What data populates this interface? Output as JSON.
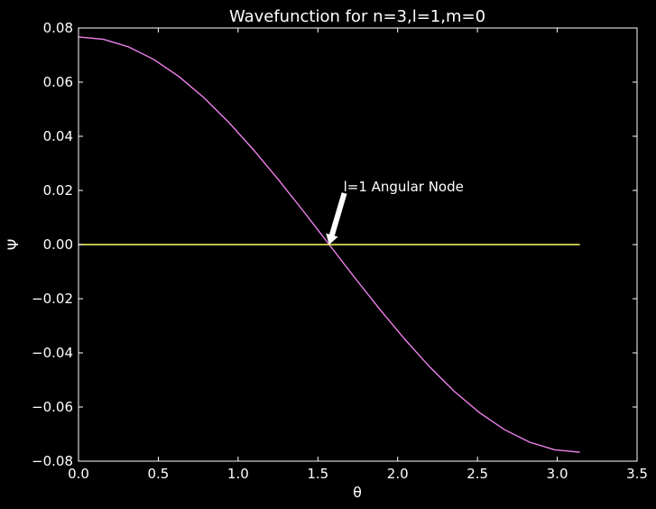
{
  "chart_data": {
    "type": "line",
    "title": "Wavefunction for n=3,l=1,m=0",
    "xlabel": "θ",
    "ylabel": "Ψ",
    "xlim": [
      0.0,
      3.5
    ],
    "ylim": [
      -0.08,
      0.08
    ],
    "x_ticks": [
      "0.0",
      "0.5",
      "1.0",
      "1.5",
      "2.0",
      "2.5",
      "3.0",
      "3.5"
    ],
    "y_ticks": [
      "0.08",
      "0.06",
      "0.04",
      "0.02",
      "0.00",
      "−0.02",
      "−0.04",
      "−0.06",
      "−0.08"
    ],
    "grid": false,
    "background": "#000000",
    "series": [
      {
        "color": "#ee82ee",
        "x": [
          0.0,
          0.1571,
          0.3142,
          0.4712,
          0.6283,
          0.7854,
          0.9425,
          1.0996,
          1.2566,
          1.4137,
          1.5708,
          1.7279,
          1.885,
          2.042,
          2.1991,
          2.3562,
          2.5133,
          2.6704,
          2.8274,
          2.9845,
          3.1416
        ],
        "values": [
          0.0767,
          0.0758,
          0.073,
          0.0684,
          0.0621,
          0.0543,
          0.0451,
          0.0348,
          0.0237,
          0.012,
          0.0,
          -0.012,
          -0.0237,
          -0.0348,
          -0.0451,
          -0.0543,
          -0.0621,
          -0.0684,
          -0.073,
          -0.0758,
          -0.0767
        ]
      },
      {
        "color": "#ffff66",
        "x": [
          0.0,
          3.1416
        ],
        "values": [
          0.0,
          0.0
        ]
      }
    ],
    "annotation": {
      "text": "l=1 Angular Node",
      "x": 1.5708,
      "y": 0.0,
      "text_x": 1.66,
      "text_y": 0.02
    }
  }
}
